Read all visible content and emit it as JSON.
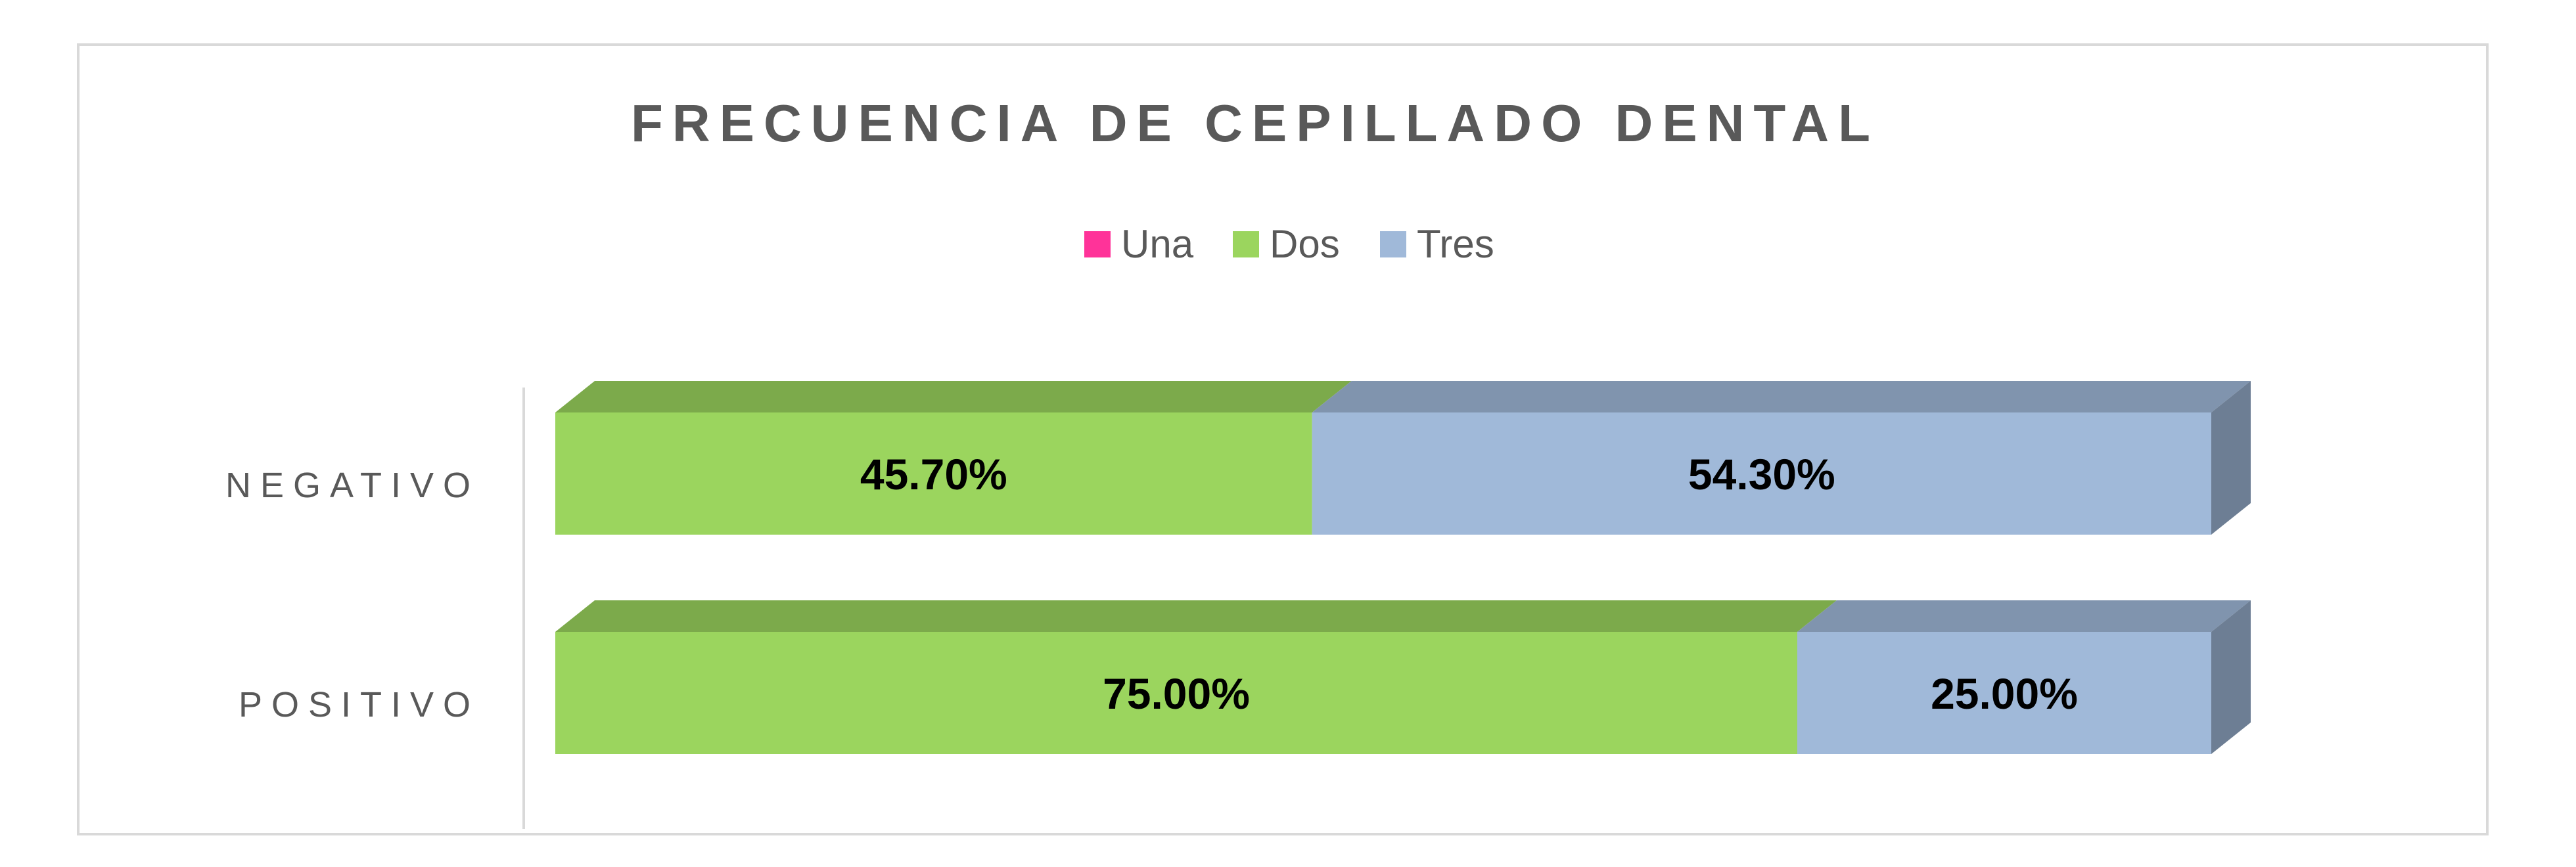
{
  "chart_data": {
    "type": "bar",
    "orientation": "horizontal",
    "stacked": "percent",
    "three_d": true,
    "title": "FRECUENCIA DE CEPILLADO DENTAL",
    "categories": [
      "NEGATIVO",
      "POSITIVO"
    ],
    "series": [
      {
        "name": "Una",
        "values": [
          0,
          0
        ],
        "color": "#ff3399"
      },
      {
        "name": "Dos",
        "values": [
          45.7,
          75.0
        ],
        "color": "#9bd55e"
      },
      {
        "name": "Tres",
        "values": [
          54.3,
          25.0
        ],
        "color": "#a0b9d9"
      }
    ],
    "data_labels": [
      [
        "",
        ""
      ],
      [
        "45.70%",
        "75.00%"
      ],
      [
        "54.30%",
        "25.00%"
      ]
    ],
    "xlim": [
      0,
      100
    ],
    "grid": false,
    "legend_position": "top"
  }
}
